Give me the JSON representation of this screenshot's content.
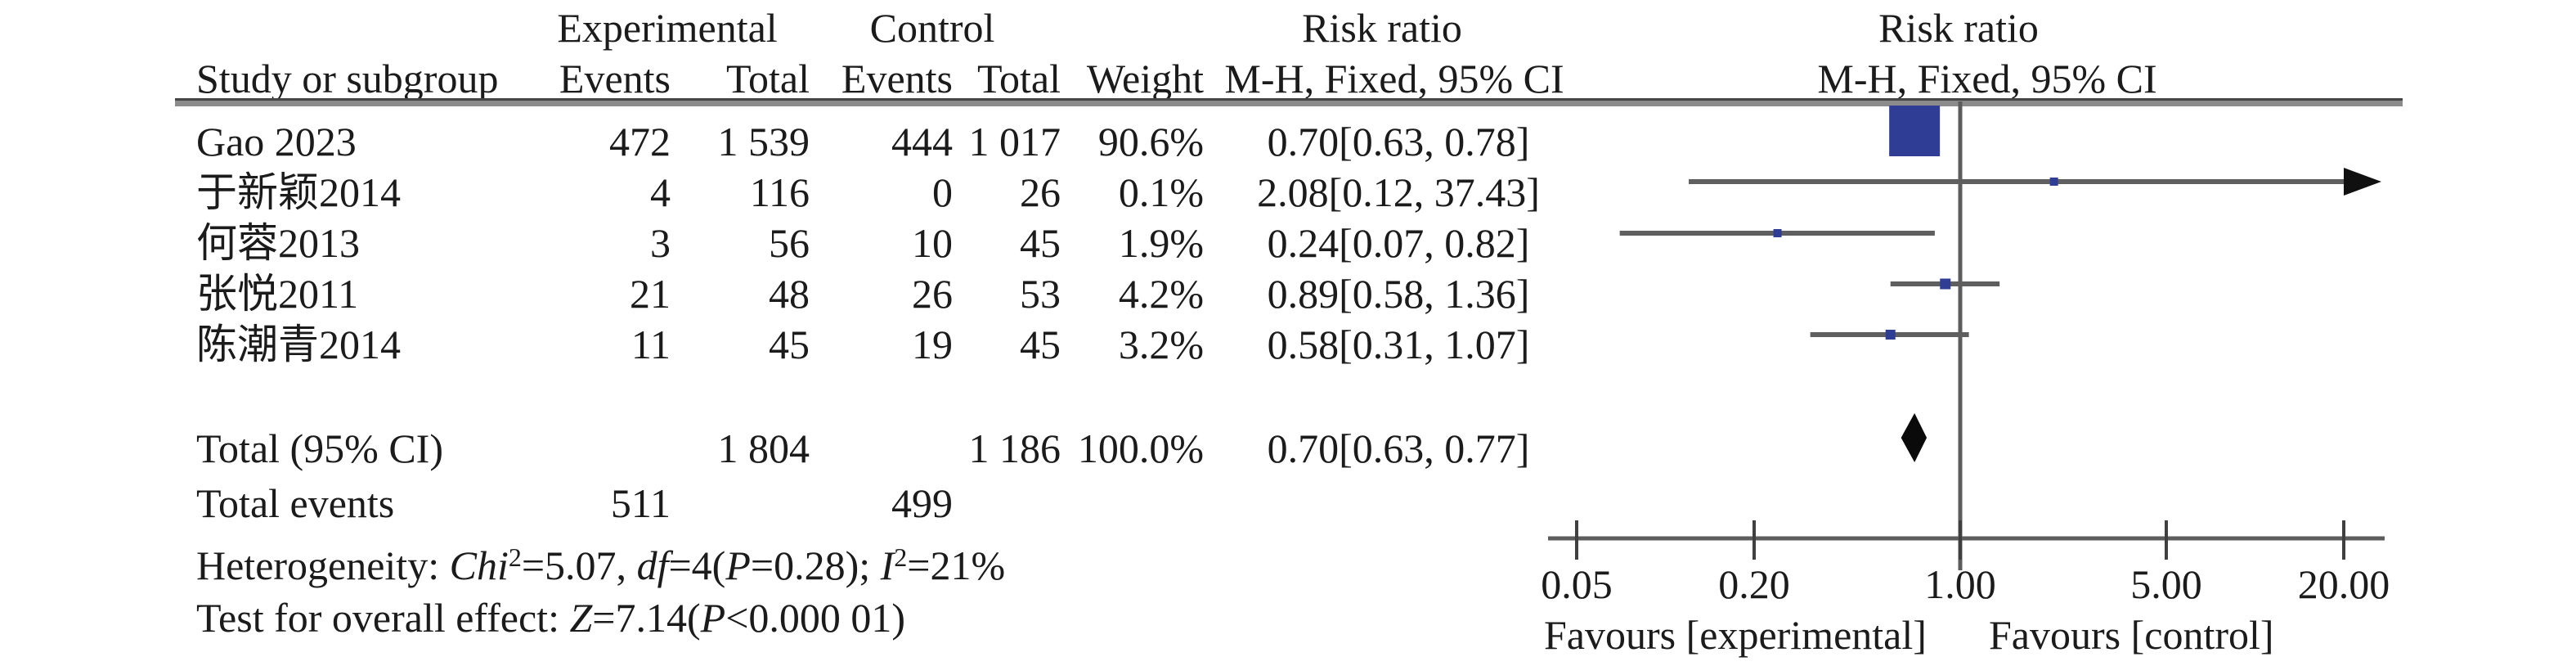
{
  "table": {
    "group_headers": {
      "experimental": "Experimental",
      "control": "Control",
      "risk_ratio_left": "Risk ratio",
      "risk_ratio_right": "Risk ratio"
    },
    "col_headers": {
      "study": "Study or subgroup",
      "events1": "Events",
      "total1": "Total",
      "events2": "Events",
      "total2": "Total",
      "weight": "Weight",
      "mh_left": "M-H, Fixed, 95% CI",
      "mh_right": "M-H, Fixed, 95% CI"
    },
    "rows": [
      {
        "study": "Gao 2023",
        "e1": "472",
        "t1": "1 539",
        "e2": "444",
        "t2": "1 017",
        "weight": "90.6%",
        "rr": "0.70[0.63, 0.78]"
      },
      {
        "study": "于新颖2014",
        "e1": "4",
        "t1": "116",
        "e2": "0",
        "t2": "26",
        "weight": "0.1%",
        "rr": "2.08[0.12, 37.43]"
      },
      {
        "study": "何蓉2013",
        "e1": "3",
        "t1": "56",
        "e2": "10",
        "t2": "45",
        "weight": "1.9%",
        "rr": "0.24[0.07, 0.82]"
      },
      {
        "study": "张悦2011",
        "e1": "21",
        "t1": "48",
        "e2": "26",
        "t2": "53",
        "weight": "4.2%",
        "rr": "0.89[0.58, 1.36]"
      },
      {
        "study": "陈潮青2014",
        "e1": "11",
        "t1": "45",
        "e2": "19",
        "t2": "45",
        "weight": "3.2%",
        "rr": "0.58[0.31, 1.07]"
      }
    ],
    "total_row": {
      "label": "Total (95% CI)",
      "t1": "1 804",
      "t2": "1 186",
      "weight": "100.0%",
      "rr": "0.70[0.63, 0.77]"
    },
    "total_events": {
      "label": "Total events",
      "e1": "511",
      "e2": "499"
    }
  },
  "stats": {
    "heterogeneity": {
      "prefix": "Heterogeneity: ",
      "chi": "Chi",
      "chi_sup": "2",
      "seg1": "=5.07, ",
      "df": "df",
      "seg2": "=4(",
      "p": "P",
      "seg3": "=0.28); ",
      "i": "I",
      "i_sup": "2",
      "seg4": "=21%"
    },
    "overall_effect": {
      "prefix": "Test for overall effect: ",
      "z": "Z",
      "seg1": "=7.14(",
      "p": "P",
      "seg2": "<0.000 01)"
    }
  },
  "chart_data": {
    "type": "forest",
    "effect_measure": "Risk ratio (M-H, Fixed, 95% CI)",
    "studies": [
      {
        "name": "Gao 2023",
        "rr": 0.7,
        "ci_low": 0.63,
        "ci_high": 0.78,
        "weight": 90.6
      },
      {
        "name": "于新颖2014",
        "rr": 2.08,
        "ci_low": 0.12,
        "ci_high": 37.43,
        "weight": 0.1
      },
      {
        "name": "何蓉2013",
        "rr": 0.24,
        "ci_low": 0.07,
        "ci_high": 0.82,
        "weight": 1.9
      },
      {
        "name": "张悦2011",
        "rr": 0.89,
        "ci_low": 0.58,
        "ci_high": 1.36,
        "weight": 4.2
      },
      {
        "name": "陈潮青2014",
        "rr": 0.58,
        "ci_low": 0.31,
        "ci_high": 1.07,
        "weight": 3.2
      }
    ],
    "total": {
      "name": "Total (95% CI)",
      "rr": 0.7,
      "ci_low": 0.63,
      "ci_high": 0.77
    },
    "axis": {
      "scale": "log",
      "min": 0.05,
      "max": 20,
      "ticks": [
        0.05,
        0.2,
        1.0,
        5.0,
        20.0
      ],
      "tick_labels": [
        "0.05",
        "0.20",
        "1.00",
        "5.00",
        "20.00"
      ],
      "no_effect_line": 1.0
    },
    "footer_left": "Favours [experimental]",
    "footer_right": "Favours [control]",
    "marker_color": "#2f3e94",
    "ci_line_color": "#5f5f5f",
    "axis_color": "#5c5c5c",
    "diamond_color": "#0a0a0a"
  }
}
